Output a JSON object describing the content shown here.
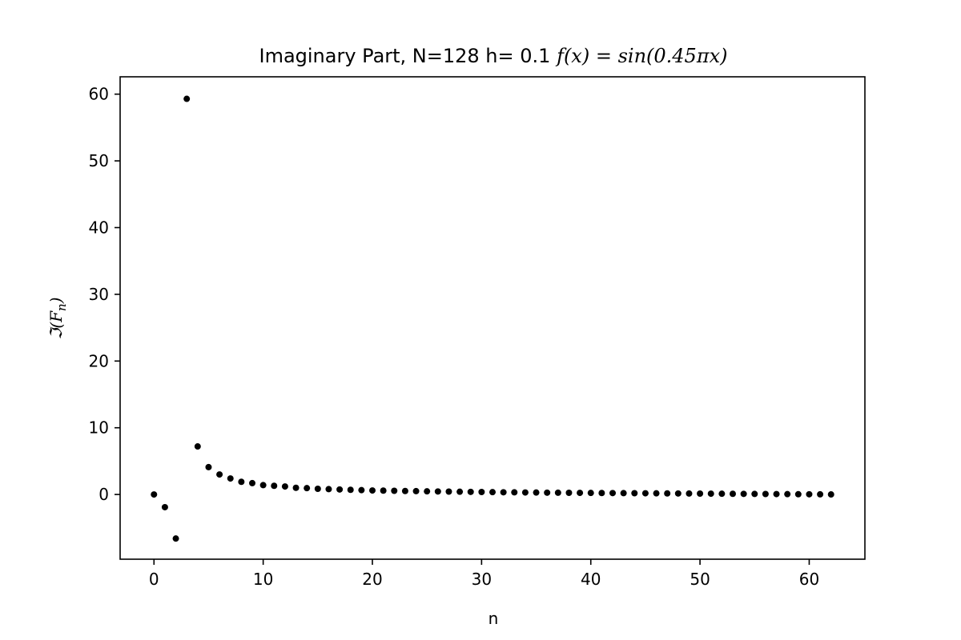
{
  "chart_data": {
    "type": "scatter",
    "title_parts": {
      "text": "Imaginary Part, N=128  h= 0.1 ",
      "math": "f(x) = sin(0.45πx)"
    },
    "xlabel": "n",
    "ylabel": "ℑ(F_n)",
    "ylabel_parts": {
      "main": "ℑ(F",
      "sub": "n",
      "close": ")"
    },
    "xlim": [
      -3.1,
      65.1
    ],
    "ylim": [
      -9.7,
      62.6
    ],
    "xticks": [
      0,
      10,
      20,
      30,
      40,
      50,
      60
    ],
    "xtick_labels": [
      "0",
      "10",
      "20",
      "30",
      "40",
      "50",
      "60"
    ],
    "yticks": [
      0,
      10,
      20,
      30,
      40,
      50,
      60
    ],
    "ytick_labels": [
      "0",
      "10",
      "20",
      "30",
      "40",
      "50",
      "60"
    ],
    "grid": false,
    "marker_color": "#000000",
    "x": [
      0,
      1,
      2,
      3,
      4,
      5,
      6,
      7,
      8,
      9,
      10,
      11,
      12,
      13,
      14,
      15,
      16,
      17,
      18,
      19,
      20,
      21,
      22,
      23,
      24,
      25,
      26,
      27,
      28,
      29,
      30,
      31,
      32,
      33,
      34,
      35,
      36,
      37,
      38,
      39,
      40,
      41,
      42,
      43,
      44,
      45,
      46,
      47,
      48,
      49,
      50,
      51,
      52,
      53,
      54,
      55,
      56,
      57,
      58,
      59,
      60,
      61,
      62
    ],
    "y": [
      0.0,
      -1.9,
      -6.6,
      59.3,
      7.2,
      4.1,
      3.0,
      2.4,
      1.9,
      1.7,
      1.4,
      1.3,
      1.2,
      1.0,
      0.95,
      0.85,
      0.8,
      0.75,
      0.7,
      0.65,
      0.6,
      0.58,
      0.55,
      0.52,
      0.5,
      0.47,
      0.45,
      0.43,
      0.41,
      0.39,
      0.37,
      0.35,
      0.33,
      0.32,
      0.3,
      0.29,
      0.27,
      0.26,
      0.25,
      0.24,
      0.23,
      0.22,
      0.21,
      0.2,
      0.19,
      0.18,
      0.17,
      0.16,
      0.15,
      0.14,
      0.13,
      0.12,
      0.11,
      0.1,
      0.09,
      0.08,
      0.07,
      0.06,
      0.05,
      0.04,
      0.03,
      0.02,
      0.01
    ]
  }
}
